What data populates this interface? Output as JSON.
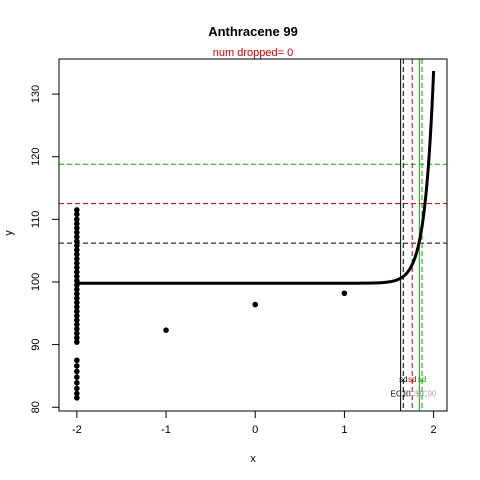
{
  "chart_data": {
    "type": "scatter",
    "title": "Anthracene 99",
    "subtitle": "num dropped= 0",
    "xlabel": "x",
    "ylabel": "y",
    "xlim": [
      -2.2,
      2.15
    ],
    "ylim": [
      79.4,
      135.6
    ],
    "x_ticks": [
      -2,
      -1,
      0,
      1,
      2
    ],
    "y_ticks": [
      80,
      90,
      100,
      110,
      120,
      130
    ],
    "points": [
      {
        "x": -2,
        "y": 111.5
      },
      {
        "x": -2,
        "y": 110.8
      },
      {
        "x": -2,
        "y": 110.0
      },
      {
        "x": -2,
        "y": 109.3
      },
      {
        "x": -2,
        "y": 108.6
      },
      {
        "x": -2,
        "y": 107.9
      },
      {
        "x": -2,
        "y": 107.2
      },
      {
        "x": -2,
        "y": 106.5
      },
      {
        "x": -2,
        "y": 105.8
      },
      {
        "x": -2,
        "y": 105.1
      },
      {
        "x": -2,
        "y": 104.4
      },
      {
        "x": -2,
        "y": 103.7
      },
      {
        "x": -2,
        "y": 103.0
      },
      {
        "x": -2,
        "y": 102.3
      },
      {
        "x": -2,
        "y": 101.6
      },
      {
        "x": -2,
        "y": 100.9
      },
      {
        "x": -2,
        "y": 100.2
      },
      {
        "x": -2,
        "y": 99.5
      },
      {
        "x": -2,
        "y": 98.8
      },
      {
        "x": -2,
        "y": 98.1
      },
      {
        "x": -2,
        "y": 97.4
      },
      {
        "x": -2,
        "y": 96.7
      },
      {
        "x": -2,
        "y": 96.0
      },
      {
        "x": -2,
        "y": 95.3
      },
      {
        "x": -2,
        "y": 94.6
      },
      {
        "x": -2,
        "y": 93.9
      },
      {
        "x": -2,
        "y": 93.2
      },
      {
        "x": -2,
        "y": 92.5
      },
      {
        "x": -2,
        "y": 91.8
      },
      {
        "x": -2,
        "y": 91.1
      },
      {
        "x": -2,
        "y": 90.4
      },
      {
        "x": -2,
        "y": 87.5
      },
      {
        "x": -2,
        "y": 86.6
      },
      {
        "x": -2,
        "y": 85.7
      },
      {
        "x": -2,
        "y": 84.8
      },
      {
        "x": -2,
        "y": 83.9
      },
      {
        "x": -2,
        "y": 83.0
      },
      {
        "x": -2,
        "y": 82.2
      },
      {
        "x": -2,
        "y": 81.5
      },
      {
        "x": -1,
        "y": 92.3
      },
      {
        "x": 0,
        "y": 96.4
      },
      {
        "x": 1,
        "y": 98.2
      }
    ],
    "fit_curve": {
      "baseline": 99.8,
      "top": 133.7,
      "x_start": -2,
      "x_end": 2
    },
    "reference_lines": {
      "horizontal": [
        {
          "y": 106.2,
          "color": "#000000",
          "style": "dashed"
        },
        {
          "y": 112.5,
          "color": "#cc0000",
          "style": "dashed"
        },
        {
          "y": 118.8,
          "color": "#00aa00",
          "style": "dashed"
        }
      ],
      "vertical": [
        {
          "x": 1.63,
          "color": "#000000",
          "style": "solid"
        },
        {
          "x": 1.66,
          "color": "#000000",
          "style": "dashed"
        },
        {
          "x": 1.76,
          "color": "#cc0000",
          "style": "dashed"
        },
        {
          "x": 1.84,
          "color": "#00aa00",
          "style": "solid"
        },
        {
          "x": 1.87,
          "color": "#00aa00",
          "style": "dashed"
        }
      ]
    },
    "annotations": [
      {
        "text": "sd",
        "x": 1.66,
        "y": 84.0,
        "color": "#000000"
      },
      {
        "text": "sd",
        "x": 1.76,
        "y": 84.0,
        "color": "#cc0000"
      },
      {
        "text": "sd",
        "x": 1.87,
        "y": 84.0,
        "color": "#00aa00"
      },
      {
        "text": "EC10",
        "x": 1.63,
        "y": 81.7,
        "color": "#000000"
      },
      {
        "text": "EC50",
        "x": 1.78,
        "y": 81.7,
        "color": "#aaaaaa"
      },
      {
        "text": "EC90",
        "x": 1.92,
        "y": 81.7,
        "color": "#aaaaaa"
      }
    ],
    "colors": {
      "points": "#000000",
      "black": "#000000",
      "red": "#cc0000",
      "green": "#00aa00"
    },
    "grid": false,
    "legend": "none"
  }
}
